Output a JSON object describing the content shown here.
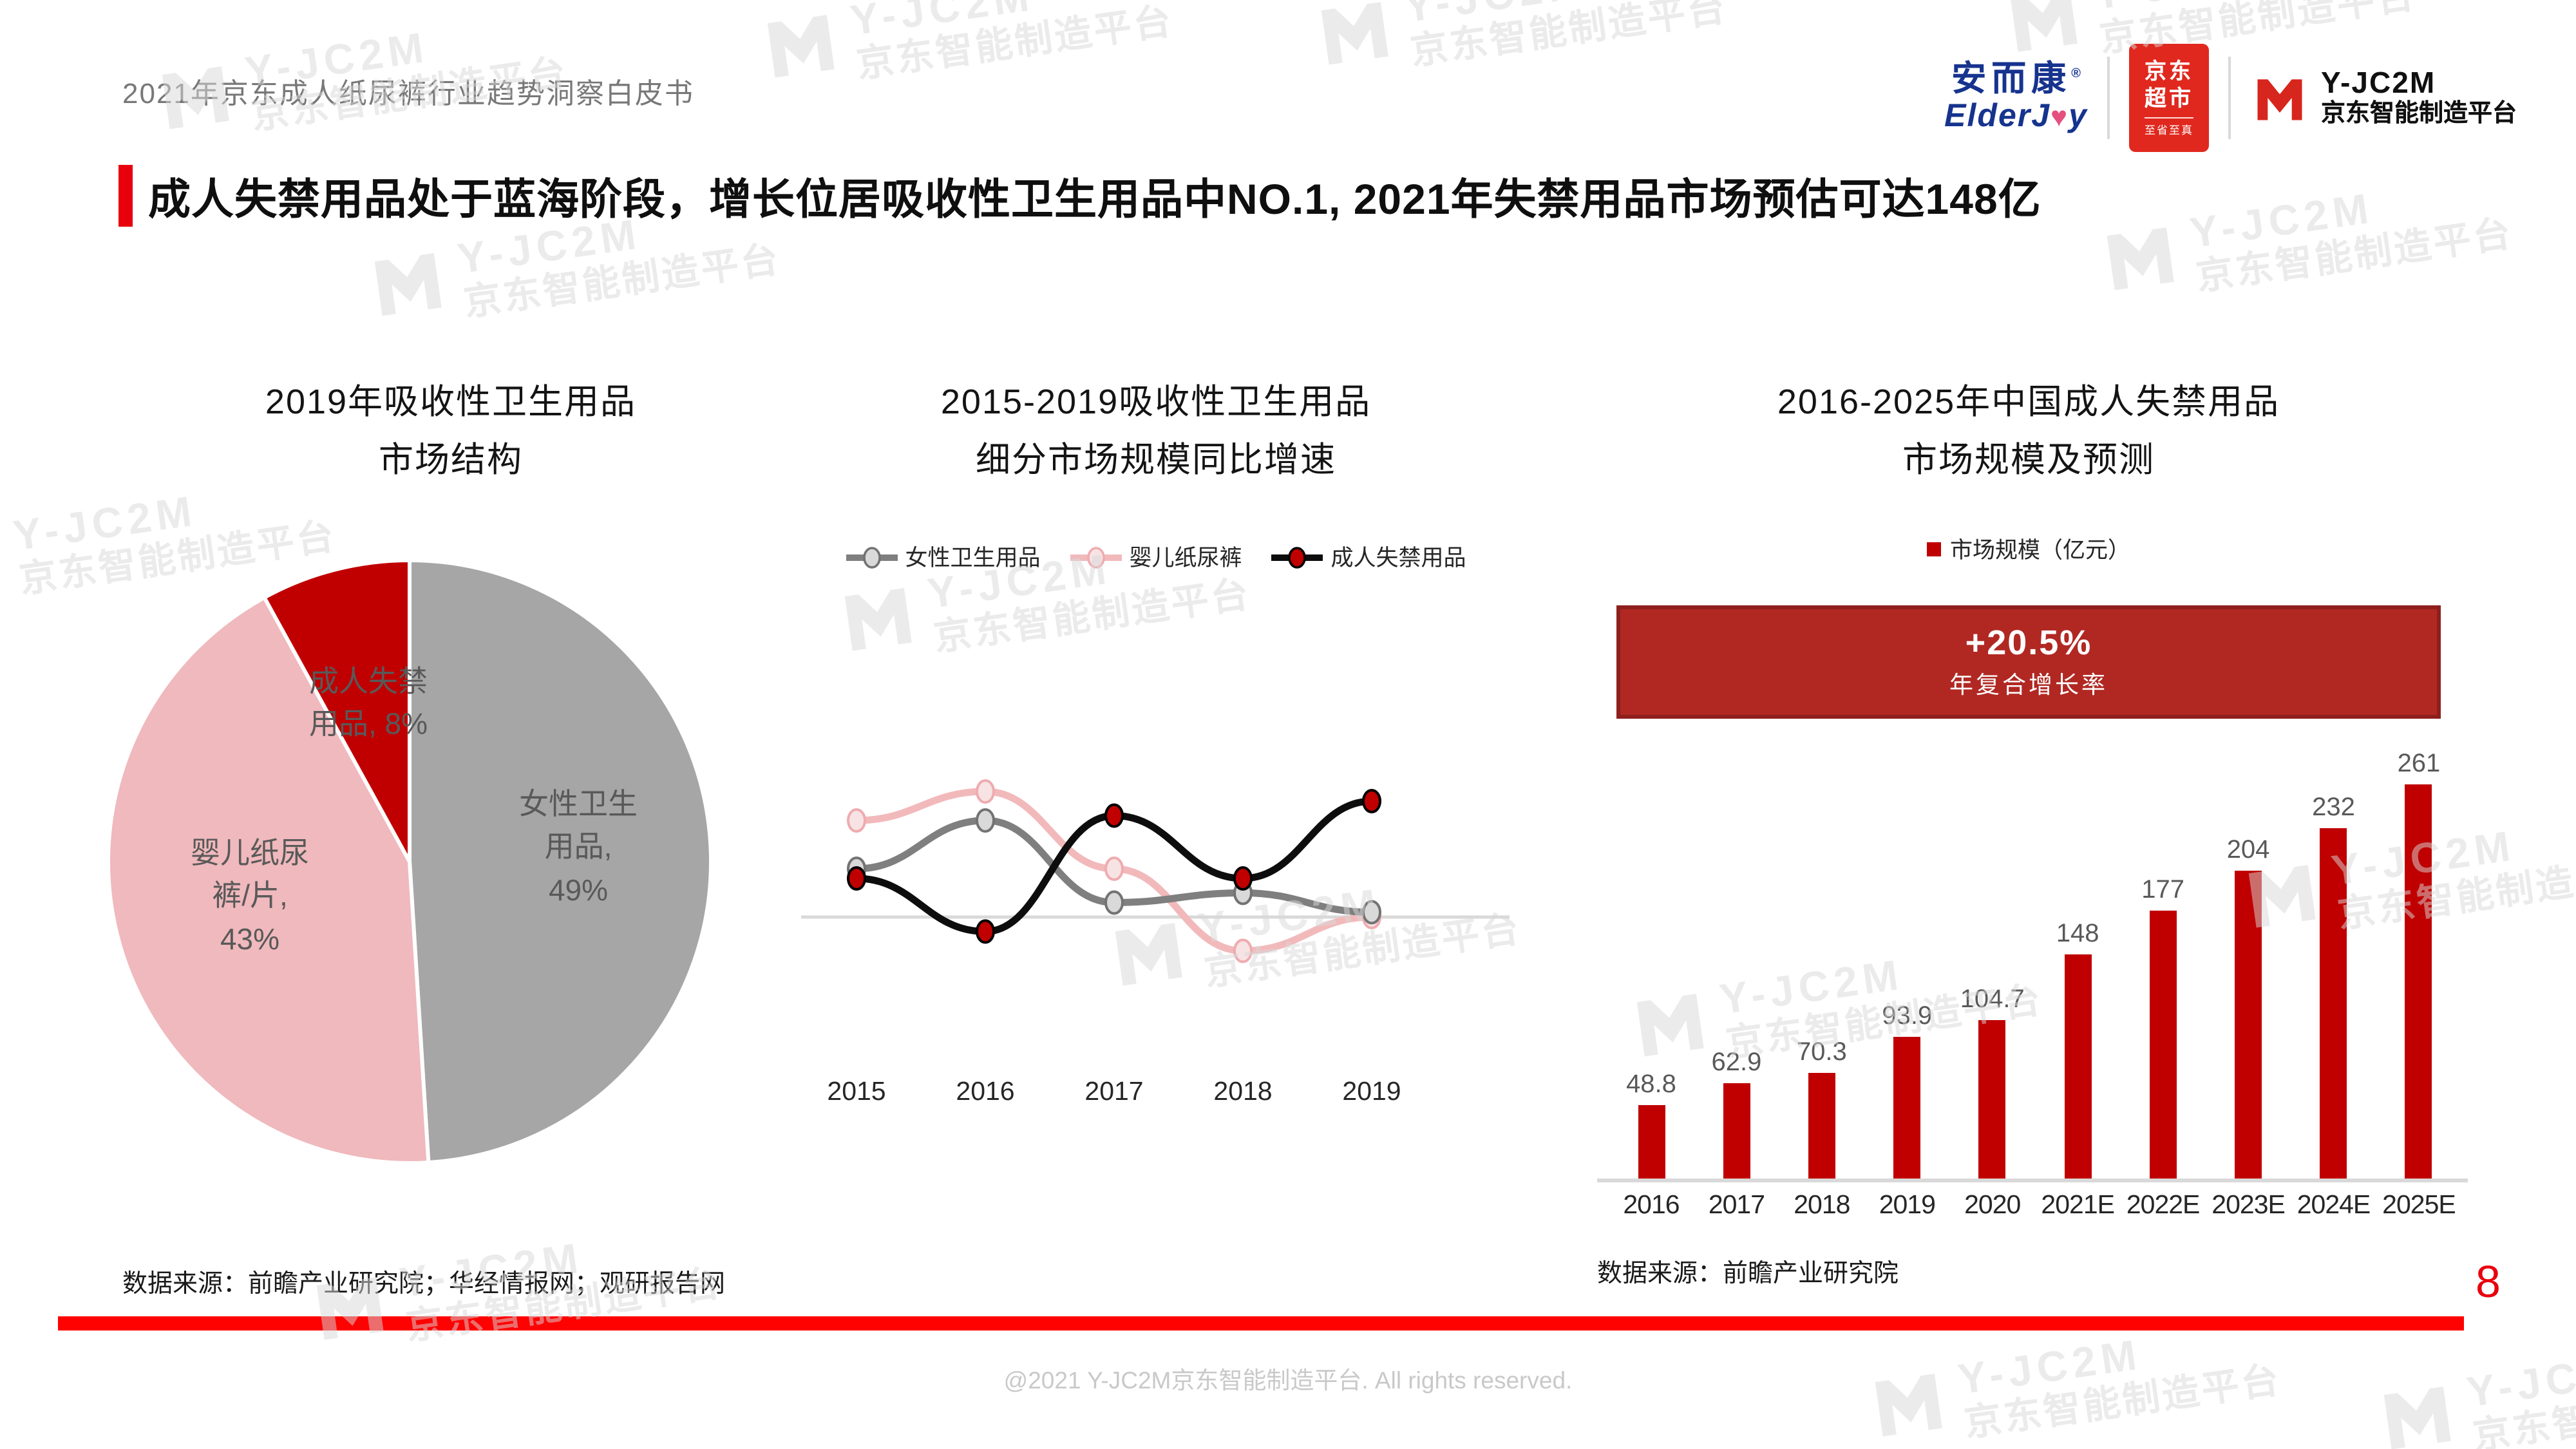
{
  "header": {
    "doc_title": "2021年京东成人纸尿裤行业趋势洞察白皮书",
    "brand": {
      "elderjoy_cn": "安而康",
      "elderjoy_reg": "®",
      "elderjoy_en_pre": "ElderJ",
      "elderjoy_en_heart": "♥",
      "elderjoy_en_post": "y",
      "jd_badge_line1": "京东",
      "jd_badge_line2": "超市",
      "jd_badge_sub": "至省至真",
      "yjc2m_name": "Y-JC2M",
      "yjc2m_sub": "京东智能制造平台"
    }
  },
  "slide": {
    "title": "成人失禁用品处于蓝海阶段，增长位居吸收性卫生用品中NO.1, 2021年失禁用品市场预估可达148亿",
    "page_number": "8",
    "source_left": "数据来源：前瞻产业研究院；华经情报网；观研报告网",
    "source_right": "数据来源：前瞻产业研究院",
    "copyright": "@2021 Y-JC2M京东智能制造平台. All rights reserved."
  },
  "watermark": {
    "line1": "Y-JC2M",
    "line2": "京东智能制造平台"
  },
  "colors": {
    "accent_red": "#e8000d",
    "bar_red": "#c00000",
    "banner_red": "#b12823",
    "pie_gray": "#a6a6a6",
    "pie_pink": "#f0b9bd",
    "pie_red": "#c00000",
    "jd_red": "#e0281e",
    "elderjoy_blue": "#16338e"
  },
  "chart_data": [
    {
      "type": "pie",
      "title_lines": [
        "2019年吸收性卫生用品",
        "市场结构"
      ],
      "start_angle": "top",
      "direction": "clockwise",
      "slices": [
        {
          "label": "女性卫生用品",
          "value": 49,
          "color": "#a6a6a6",
          "label_lines": [
            "女性卫生",
            "用品,",
            "49%"
          ]
        },
        {
          "label": "婴儿纸尿裤/片",
          "value": 43,
          "color": "#f0b9bd",
          "label_lines": [
            "婴儿纸尿",
            "裤/片,",
            "43%"
          ]
        },
        {
          "label": "成人失禁用品",
          "value": 8,
          "color": "#c00000",
          "label_lines": [
            "成人失禁",
            "用品, 8%"
          ]
        }
      ]
    },
    {
      "type": "line",
      "title_lines": [
        "2015-2019吸收性卫生用品",
        "细分市场规模同比增速"
      ],
      "x": [
        "2015",
        "2016",
        "2017",
        "2018",
        "2019"
      ],
      "unit": "%",
      "y_axis_visible": false,
      "values_estimated": true,
      "legend_position": "top",
      "series": [
        {
          "name": "女性卫生用品",
          "color": "#7f7f7f",
          "marker_fill": "#d9d9d9",
          "marker_stroke": "#737373",
          "values": [
            5,
            10,
            1.5,
            2.5,
            0.5
          ]
        },
        {
          "name": "婴儿纸尿裤",
          "color": "#f2b9bb",
          "marker_fill": "#f8e3e4",
          "marker_stroke": "#eeacb0",
          "values": [
            10,
            13,
            5,
            -3.5,
            0
          ]
        },
        {
          "name": "成人失禁用品",
          "color": "#0d0d0d",
          "marker_fill": "#c00000",
          "marker_stroke": "#000000",
          "values": [
            4,
            -1.5,
            10.5,
            4,
            12
          ]
        }
      ]
    },
    {
      "type": "bar",
      "title_lines": [
        "2016-2025年中国成人失禁用品",
        "市场规模及预测"
      ],
      "legend": "市场规模（亿元）",
      "annotation": {
        "value": "+20.5%",
        "label": "年复合增长率"
      },
      "categories": [
        "2016",
        "2017",
        "2018",
        "2019",
        "2020",
        "2021E",
        "2022E",
        "2023E",
        "2024E",
        "2025E"
      ],
      "values": [
        48.8,
        62.9,
        70.3,
        93.9,
        104.7,
        148,
        177,
        204,
        232,
        261
      ],
      "bar_color": "#c00000",
      "label_color": "#595959"
    }
  ]
}
